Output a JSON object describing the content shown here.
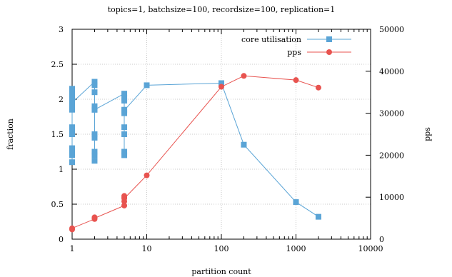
{
  "chart_data": {
    "type": "line",
    "title": "topics=1, batchsize=100, recordsize=100, replication=1",
    "xlabel": "partition count",
    "ylabel": "fraction",
    "y2label": "pps",
    "x_scale": "log",
    "xlim": [
      1,
      10000
    ],
    "ylim": [
      0,
      3
    ],
    "y2lim": [
      0,
      50000
    ],
    "x_ticks": [
      1,
      10,
      100,
      1000,
      10000
    ],
    "x_tick_labels": [
      "1",
      "10",
      "100",
      "1000",
      "10000"
    ],
    "y_ticks": [
      0,
      0.5,
      1,
      1.5,
      2,
      2.5,
      3
    ],
    "y_tick_labels": [
      "0",
      "0.5",
      "1",
      "1.5",
      "2",
      "2.5",
      "3"
    ],
    "y2_ticks": [
      0,
      10000,
      20000,
      30000,
      40000,
      50000
    ],
    "y2_tick_labels": [
      "0",
      "10000",
      "20000",
      "30000",
      "40000",
      "50000"
    ],
    "grid": true,
    "legend_position": "top-right",
    "series": [
      {
        "name": "core utilisation",
        "axis": "left",
        "marker": "square",
        "color": "#5aa4d6",
        "x": [
          1,
          1,
          1,
          1,
          1,
          1,
          1,
          1,
          1,
          1,
          1,
          1,
          1,
          1,
          1,
          2,
          2,
          2,
          2,
          2,
          2,
          2,
          2,
          2,
          2,
          2,
          5,
          5,
          5,
          5,
          5,
          5,
          5,
          5,
          5,
          5,
          10,
          100,
          200,
          1000,
          2000
        ],
        "y": [
          2.15,
          2.1,
          2.05,
          2.0,
          1.95,
          1.9,
          1.85,
          1.6,
          1.55,
          1.5,
          1.3,
          1.25,
          1.2,
          1.1,
          1.95,
          2.25,
          2.2,
          2.1,
          1.9,
          1.85,
          1.5,
          1.45,
          1.25,
          1.2,
          1.12,
          1.85,
          2.08,
          2.02,
          1.98,
          1.85,
          1.8,
          1.6,
          1.5,
          1.25,
          1.2,
          1.84,
          2.2,
          2.23,
          1.35,
          0.53,
          0.32
        ]
      },
      {
        "name": "pps",
        "axis": "right",
        "marker": "circle",
        "color": "#e8534f",
        "x": [
          1,
          1,
          2,
          2,
          2,
          5,
          5,
          5,
          5,
          5,
          10,
          100,
          200,
          1000,
          2000
        ],
        "y": [
          2300,
          2600,
          4800,
          5200,
          5000,
          8000,
          9000,
          10000,
          10300,
          9700,
          15200,
          36300,
          38900,
          37900,
          36100
        ]
      }
    ]
  }
}
